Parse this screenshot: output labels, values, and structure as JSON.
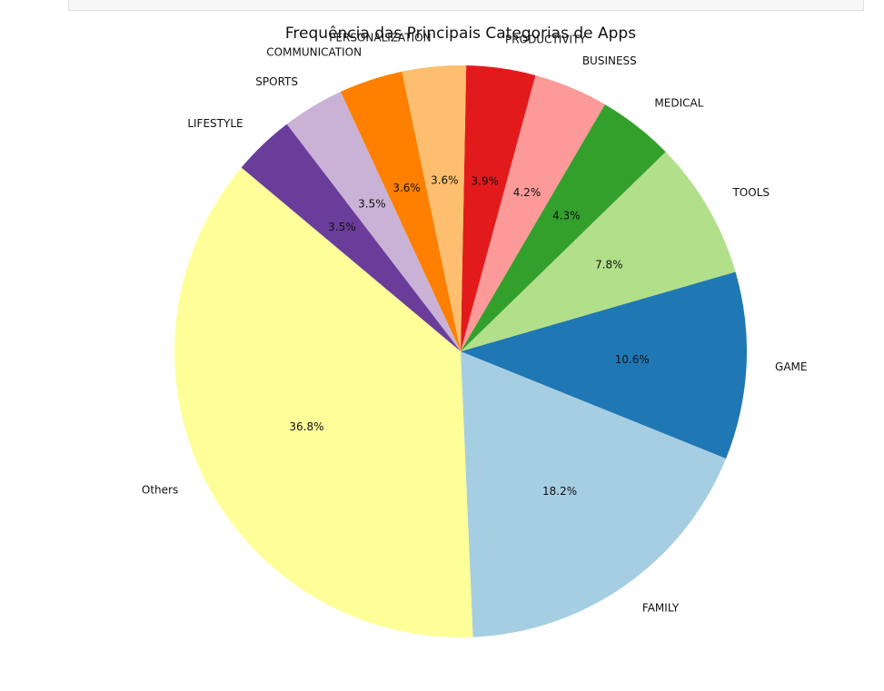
{
  "chart_data": {
    "type": "pie",
    "title": "Frequência das Principais Categorias de Apps",
    "labels": [
      "Others",
      "FAMILY",
      "GAME",
      "TOOLS",
      "MEDICAL",
      "BUSINESS",
      "PRODUCTIVITY",
      "PERSONALIZATION",
      "COMMUNICATION",
      "SPORTS",
      "LIFESTYLE"
    ],
    "values": [
      36.8,
      18.2,
      10.6,
      7.8,
      4.3,
      4.2,
      3.9,
      3.6,
      3.6,
      3.5,
      3.5
    ],
    "pct_labels": [
      "36.8%",
      "18.2%",
      "10.6%",
      "7.8%",
      "4.3%",
      "4.2%",
      "3.9%",
      "3.6%",
      "3.6%",
      "3.5%",
      "3.5%"
    ],
    "colors": [
      "#ffff99",
      "#a6cee3",
      "#1f78b4",
      "#b2df8a",
      "#33a02c",
      "#fb9a99",
      "#e31a1c",
      "#fdbf6f",
      "#ff7f00",
      "#cab2d6",
      "#6a3d9a"
    ],
    "start_angle_deg": 140,
    "direction": "counterclockwise",
    "legend": "none"
  }
}
